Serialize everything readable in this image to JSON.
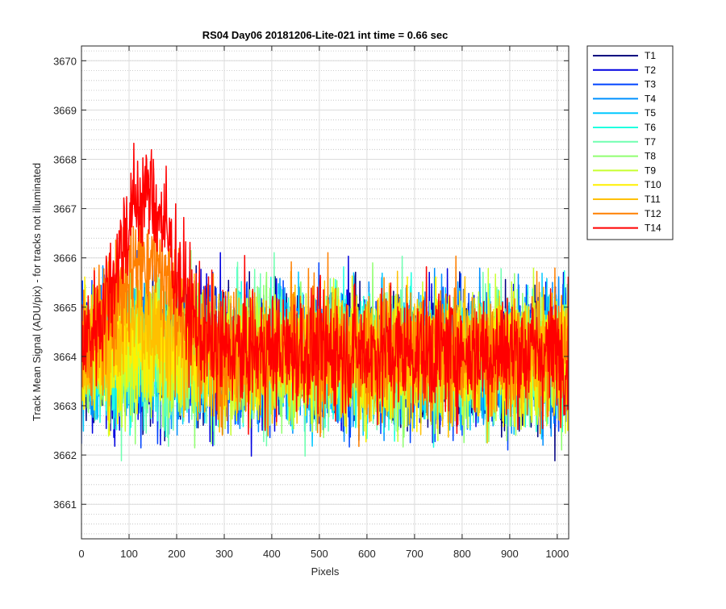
{
  "chart_data": {
    "type": "line",
    "title": "RS04 Day06 20181206-Lite-021 int time = 0.66 sec",
    "xlabel": "Pixels",
    "ylabel": "Track Mean Signal (ADU/pix) - for tracks not illuminated",
    "xlim": [
      0,
      1024
    ],
    "ylim": [
      3660.3,
      3670.3
    ],
    "xticks": [
      0,
      100,
      200,
      300,
      400,
      500,
      600,
      700,
      800,
      900,
      1000
    ],
    "yticks": [
      3661,
      3662,
      3663,
      3664,
      3665,
      3666,
      3667,
      3668,
      3669,
      3670
    ],
    "grid": true,
    "minor_grid_y": true,
    "legend_position": "outside-top-right",
    "n_points": 1024,
    "series": [
      {
        "name": "T1",
        "color": "#000080",
        "mean": 3664.0,
        "peak": 0.0,
        "noise": 1.05
      },
      {
        "name": "T2",
        "color": "#0000E0",
        "mean": 3664.0,
        "peak": 0.0,
        "noise": 1.05
      },
      {
        "name": "T3",
        "color": "#0044FF",
        "mean": 3664.0,
        "peak": 0.0,
        "noise": 1.05
      },
      {
        "name": "T4",
        "color": "#0090FF",
        "mean": 3664.0,
        "peak": 0.0,
        "noise": 1.05
      },
      {
        "name": "T5",
        "color": "#00C8FF",
        "mean": 3664.0,
        "peak": 0.0,
        "noise": 1.05
      },
      {
        "name": "T6",
        "color": "#20FFE0",
        "mean": 3664.0,
        "peak": 0.0,
        "noise": 1.05
      },
      {
        "name": "T7",
        "color": "#70FFB0",
        "mean": 3664.0,
        "peak": 0.0,
        "noise": 1.05
      },
      {
        "name": "T8",
        "color": "#90FF70",
        "mean": 3664.0,
        "peak": 0.0,
        "noise": 1.05
      },
      {
        "name": "T9",
        "color": "#C8FF30",
        "mean": 3664.0,
        "peak": 0.0,
        "noise": 1.05
      },
      {
        "name": "T10",
        "color": "#FFF000",
        "mean": 3664.0,
        "peak": 0.3,
        "noise": 1.0
      },
      {
        "name": "T11",
        "color": "#FFC000",
        "mean": 3664.0,
        "peak": 0.8,
        "noise": 1.0
      },
      {
        "name": "T12",
        "color": "#FF8000",
        "mean": 3664.1,
        "peak": 2.0,
        "noise": 1.0
      },
      {
        "name": "T14",
        "color": "#FF0000",
        "mean": 3664.1,
        "peak": 3.2,
        "noise": 0.95
      }
    ]
  }
}
